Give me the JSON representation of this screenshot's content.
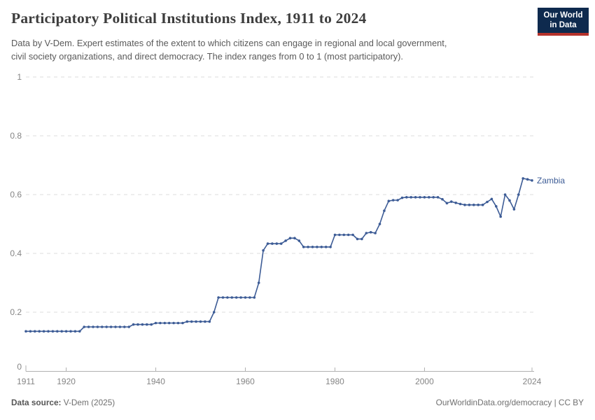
{
  "header": {
    "title": "Participatory Political Institutions Index, 1911 to 2024",
    "subtitle_lines": [
      "Data by V-Dem. Expert estimates of the extent to which citizens can engage in regional and local government,",
      "civil society organizations, and direct democracy. The index ranges from 0 to 1 (most participatory)."
    ],
    "logo": {
      "line1": "Our World",
      "line2": "in Data",
      "bg_color": "#0e2a4e",
      "accent_color": "#b5322b"
    }
  },
  "chart_data": {
    "type": "line",
    "title": "Participatory Political Institutions Index, 1911 to 2024",
    "entity": "Zambia",
    "line_color": "#3d5c96",
    "grid": "horizontal dashed",
    "legend_position": "end-of-line label",
    "xlabel": "",
    "ylabel": "",
    "ylim": [
      0,
      1
    ],
    "xlim": [
      1911,
      2024
    ],
    "yticks": [
      0,
      0.2,
      0.4,
      0.6,
      0.8,
      1
    ],
    "ytick_labels": [
      "0",
      "0.2",
      "0.4",
      "0.6",
      "0.8",
      "1"
    ],
    "xticks": [
      1911,
      1920,
      1940,
      1960,
      1980,
      2000,
      2024
    ],
    "x": [
      1911,
      1912,
      1913,
      1914,
      1915,
      1916,
      1917,
      1918,
      1919,
      1920,
      1921,
      1922,
      1923,
      1924,
      1925,
      1926,
      1927,
      1928,
      1929,
      1930,
      1931,
      1932,
      1933,
      1934,
      1935,
      1936,
      1937,
      1938,
      1939,
      1940,
      1941,
      1942,
      1943,
      1944,
      1945,
      1946,
      1947,
      1948,
      1949,
      1950,
      1951,
      1952,
      1953,
      1954,
      1955,
      1956,
      1957,
      1958,
      1959,
      1960,
      1961,
      1962,
      1963,
      1964,
      1965,
      1966,
      1967,
      1968,
      1969,
      1970,
      1971,
      1972,
      1973,
      1974,
      1975,
      1976,
      1977,
      1978,
      1979,
      1980,
      1981,
      1982,
      1983,
      1984,
      1985,
      1986,
      1987,
      1988,
      1989,
      1990,
      1991,
      1992,
      1993,
      1994,
      1995,
      1996,
      1997,
      1998,
      1999,
      2000,
      2001,
      2002,
      2003,
      2004,
      2005,
      2006,
      2007,
      2008,
      2009,
      2010,
      2011,
      2012,
      2013,
      2014,
      2015,
      2016,
      2017,
      2018,
      2019,
      2020,
      2021,
      2022,
      2023,
      2024
    ],
    "values": [
      0.135,
      0.135,
      0.135,
      0.135,
      0.135,
      0.135,
      0.135,
      0.135,
      0.135,
      0.135,
      0.135,
      0.135,
      0.135,
      0.15,
      0.15,
      0.15,
      0.15,
      0.15,
      0.15,
      0.15,
      0.15,
      0.15,
      0.15,
      0.15,
      0.158,
      0.158,
      0.158,
      0.158,
      0.158,
      0.163,
      0.163,
      0.163,
      0.163,
      0.163,
      0.163,
      0.163,
      0.168,
      0.168,
      0.168,
      0.168,
      0.168,
      0.168,
      0.2,
      0.25,
      0.25,
      0.25,
      0.25,
      0.25,
      0.25,
      0.25,
      0.25,
      0.25,
      0.3,
      0.41,
      0.433,
      0.433,
      0.433,
      0.433,
      0.443,
      0.452,
      0.452,
      0.443,
      0.422,
      0.422,
      0.422,
      0.422,
      0.422,
      0.422,
      0.422,
      0.463,
      0.463,
      0.463,
      0.463,
      0.463,
      0.449,
      0.449,
      0.469,
      0.472,
      0.469,
      0.5,
      0.545,
      0.578,
      0.581,
      0.581,
      0.589,
      0.591,
      0.591,
      0.591,
      0.591,
      0.591,
      0.591,
      0.591,
      0.591,
      0.584,
      0.571,
      0.576,
      0.572,
      0.568,
      0.565,
      0.565,
      0.565,
      0.565,
      0.565,
      0.575,
      0.585,
      0.56,
      0.525,
      0.6,
      0.58,
      0.55,
      0.6,
      0.655,
      0.652,
      0.648
    ]
  },
  "footer": {
    "source_label": "Data source:",
    "source_value": "V-Dem (2025)",
    "credit": "OurWorldinData.org/democracy | CC BY"
  }
}
